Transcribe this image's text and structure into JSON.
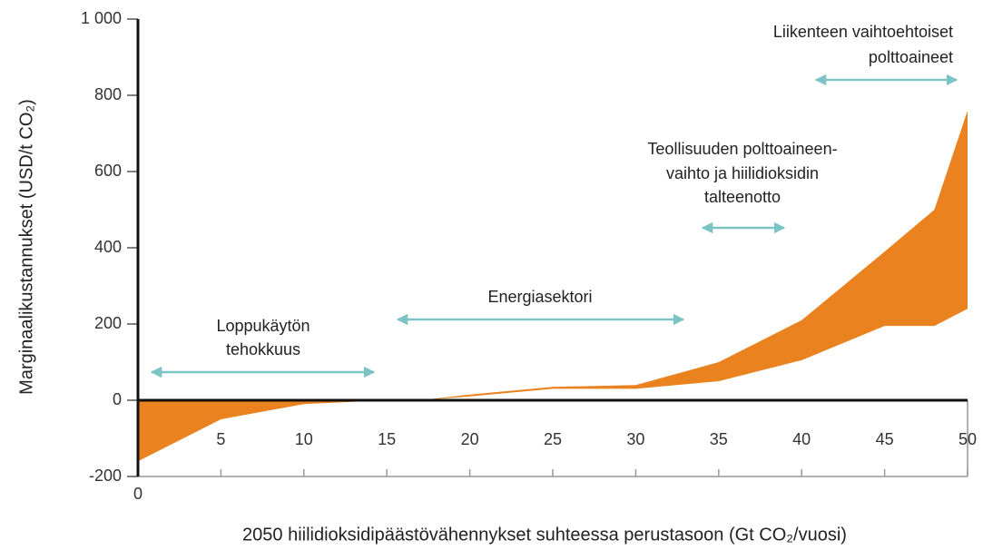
{
  "chart_data": {
    "type": "area_range",
    "xlabel": "2050 hiilidioksidipäästövähennykset suhteessa perustasoon (Gt CO₂/vuosi)",
    "ylabel": "Marginaalikustannukset (USD/t CO₂)",
    "x": [
      0,
      5,
      10,
      15,
      17,
      20,
      25,
      30,
      35,
      40,
      45,
      48,
      50
    ],
    "upper": [
      0,
      0,
      0,
      0,
      0,
      15,
      35,
      40,
      100,
      210,
      390,
      500,
      760
    ],
    "lower": [
      -160,
      -50,
      -10,
      0,
      0,
      10,
      30,
      30,
      50,
      105,
      195,
      195,
      240
    ],
    "color": "#e9821f",
    "xlim": [
      0,
      50
    ],
    "xticks": [
      0,
      5,
      10,
      15,
      20,
      25,
      30,
      35,
      40,
      45,
      50
    ],
    "ylim": [
      -200,
      1000
    ],
    "yticks": [
      -200,
      0,
      200,
      400,
      600,
      800,
      {
        "value": 1000,
        "label": "1 000"
      }
    ],
    "annotations": [
      {
        "lines": [
          "Loppukäytön",
          "tehokkuus"
        ]
      },
      {
        "lines": [
          "Energiasektori"
        ]
      },
      {
        "lines": [
          "Teollisuuden polttoaineen-",
          "vaihto ja hiilidioksidin",
          "talteenotto"
        ]
      },
      {
        "lines": [
          "Liikenteen vaihtoehtoiset",
          "polttoaineet"
        ]
      }
    ]
  }
}
